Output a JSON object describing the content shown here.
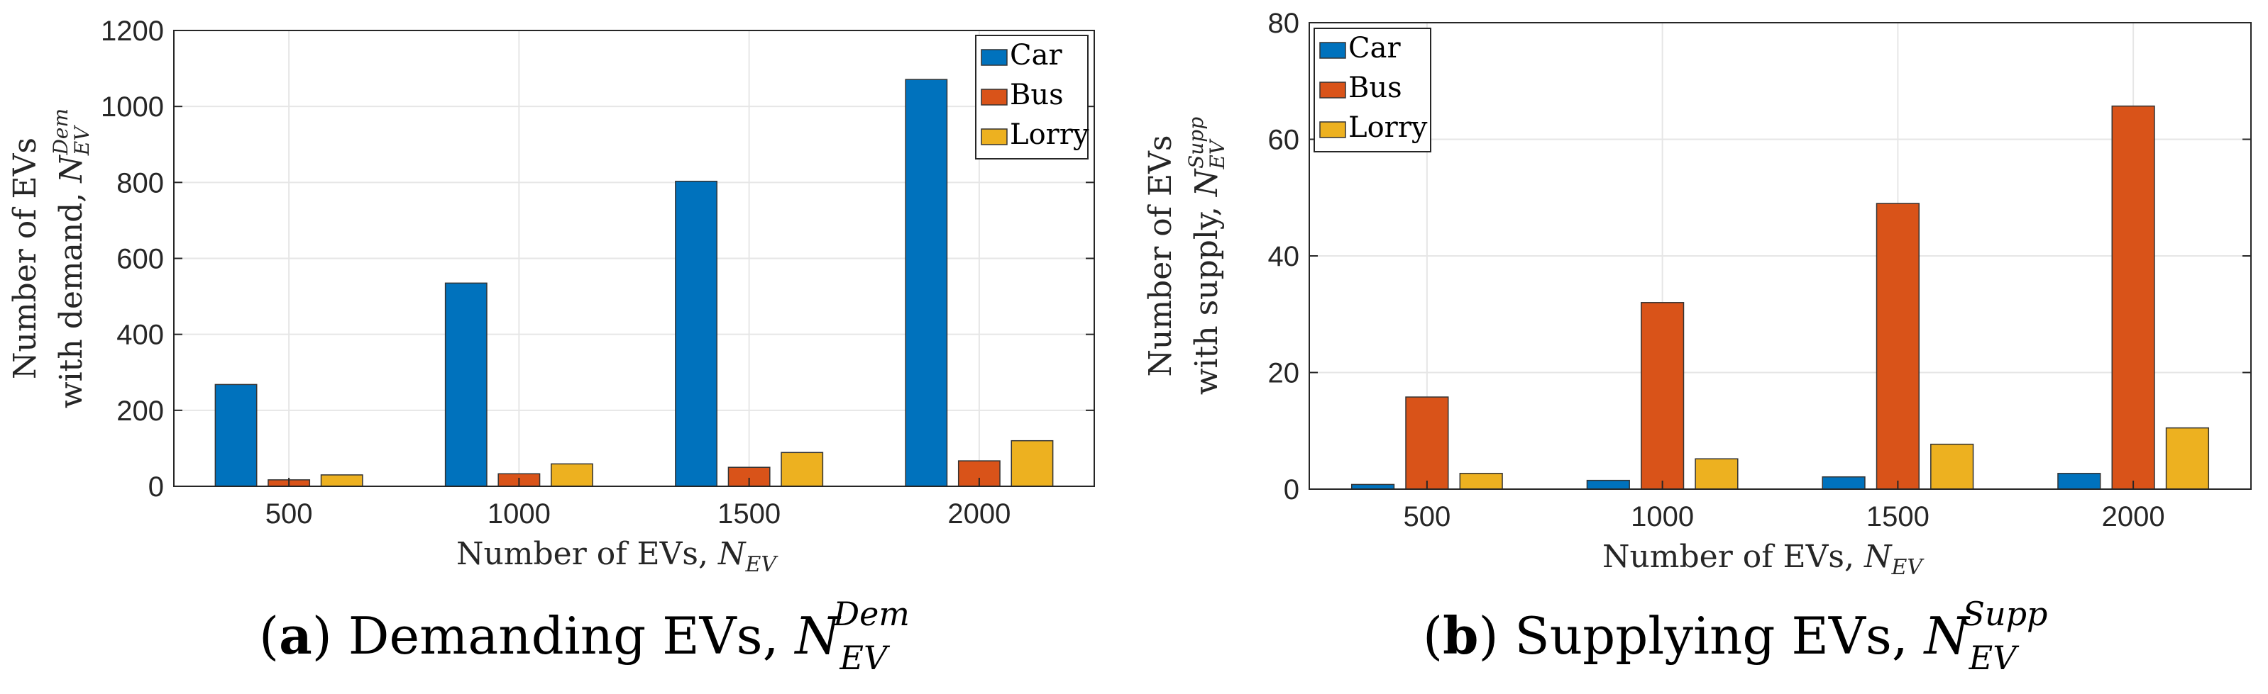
{
  "charts": [
    {
      "id": "a",
      "ylabel_line1": "Number of EVs",
      "ylabel_line2_text": "with demand, ",
      "ylabel_symbol": "N",
      "ylabel_sub": "EV",
      "ylabel_sup": "Dem",
      "caption_letter": "a",
      "caption_text": " Demanding EVs, ",
      "caption_symbol": "N",
      "caption_sub": "EV",
      "caption_sup": "Dem"
    },
    {
      "id": "b",
      "ylabel_line1": "Number of EVs",
      "ylabel_line2_text": "with supply, ",
      "ylabel_symbol": "N",
      "ylabel_sub": "EV",
      "ylabel_sup": "Supp",
      "caption_letter": "b",
      "caption_text": " Supplying EVs, ",
      "caption_symbol": "N",
      "caption_sub": "EV",
      "caption_sup": "Supp"
    }
  ],
  "xlabel_text": "Number of EVs, ",
  "xlabel_symbol": "N",
  "xlabel_sub": "EV",
  "colors": {
    "Car": "#0072BD",
    "Bus": "#D95319",
    "Lorry": "#EDB120"
  },
  "chart_data": [
    {
      "type": "bar",
      "title": "",
      "xlabel": "Number of EVs, N_EV",
      "ylabel": "Number of EVs with demand, N_EV^Dem",
      "categories": [
        "500",
        "1000",
        "1500",
        "2000"
      ],
      "series": [
        {
          "name": "Car",
          "values": [
            268,
            535,
            803,
            1071
          ]
        },
        {
          "name": "Bus",
          "values": [
            17,
            33,
            50,
            67
          ]
        },
        {
          "name": "Lorry",
          "values": [
            30,
            59,
            89,
            120
          ]
        }
      ],
      "ylim": [
        0,
        1200
      ],
      "yticks": [
        "0",
        "200",
        "400",
        "600",
        "800",
        "1000",
        "1200"
      ],
      "legend": "top-right",
      "grid": true
    },
    {
      "type": "bar",
      "title": "",
      "xlabel": "Number of EVs, N_EV",
      "ylabel": "Number of EVs with supply, N_EV^Supp",
      "categories": [
        "500",
        "1000",
        "1500",
        "2000"
      ],
      "series": [
        {
          "name": "Car",
          "values": [
            0.8,
            1.5,
            2.1,
            2.7
          ]
        },
        {
          "name": "Bus",
          "values": [
            15.8,
            32.0,
            49.0,
            65.7
          ]
        },
        {
          "name": "Lorry",
          "values": [
            2.7,
            5.2,
            7.7,
            10.5
          ]
        }
      ],
      "ylim": [
        0,
        80
      ],
      "yticks": [
        "0",
        "20",
        "40",
        "60",
        "80"
      ],
      "legend": "top-left",
      "grid": true
    }
  ]
}
